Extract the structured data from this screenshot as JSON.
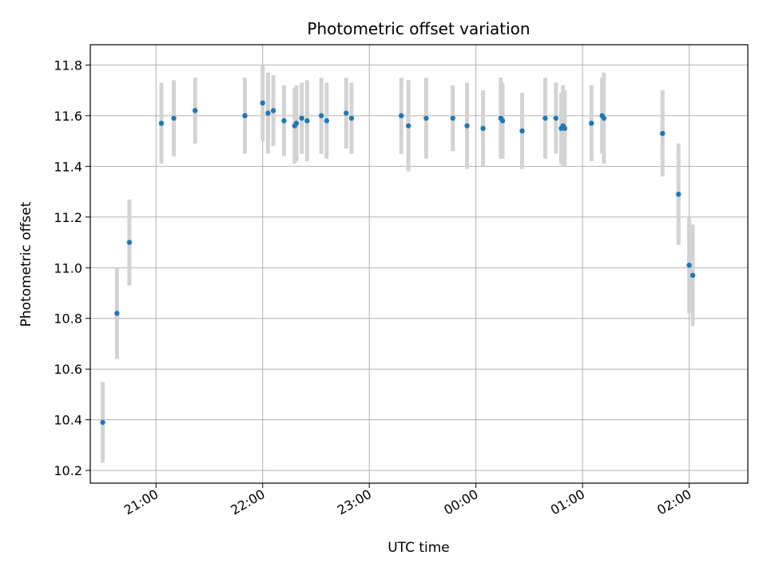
{
  "chart_data": {
    "type": "scatter",
    "title": "Photometric offset variation",
    "xlabel": "UTC time",
    "ylabel": "Photometric offset",
    "xlim": [
      "20:23",
      "02:33"
    ],
    "ylim": [
      10.15,
      11.88
    ],
    "x_ticks": [
      "21:00",
      "22:00",
      "23:00",
      "00:00",
      "01:00",
      "02:00"
    ],
    "y_ticks": [
      "10.2",
      "10.4",
      "10.6",
      "10.8",
      "11.0",
      "11.2",
      "11.4",
      "11.6",
      "11.8"
    ],
    "grid": true,
    "legend": "none",
    "colors": {
      "points": "#1f77b4",
      "errorbars": "#d3d3d3",
      "grid": "#b0b0b0"
    },
    "points": [
      {
        "t": "20:30",
        "y": 10.39,
        "err": 0.16
      },
      {
        "t": "20:38",
        "y": 10.82,
        "err": 0.18
      },
      {
        "t": "20:45",
        "y": 11.1,
        "err": 0.17
      },
      {
        "t": "21:03",
        "y": 11.57,
        "err": 0.16
      },
      {
        "t": "21:10",
        "y": 11.59,
        "err": 0.15
      },
      {
        "t": "21:22",
        "y": 11.62,
        "err": 0.13
      },
      {
        "t": "21:50",
        "y": 11.6,
        "err": 0.15
      },
      {
        "t": "22:00",
        "y": 11.65,
        "err": 0.15
      },
      {
        "t": "22:03",
        "y": 11.61,
        "err": 0.16
      },
      {
        "t": "22:06",
        "y": 11.62,
        "err": 0.14
      },
      {
        "t": "22:12",
        "y": 11.58,
        "err": 0.14
      },
      {
        "t": "22:18",
        "y": 11.56,
        "err": 0.15
      },
      {
        "t": "22:19",
        "y": 11.57,
        "err": 0.15
      },
      {
        "t": "22:22",
        "y": 11.59,
        "err": 0.14
      },
      {
        "t": "22:25",
        "y": 11.58,
        "err": 0.16
      },
      {
        "t": "22:33",
        "y": 11.6,
        "err": 0.15
      },
      {
        "t": "22:36",
        "y": 11.58,
        "err": 0.15
      },
      {
        "t": "22:47",
        "y": 11.61,
        "err": 0.14
      },
      {
        "t": "22:50",
        "y": 11.59,
        "err": 0.14
      },
      {
        "t": "23:18",
        "y": 11.6,
        "err": 0.15
      },
      {
        "t": "23:22",
        "y": 11.56,
        "err": 0.18
      },
      {
        "t": "23:32",
        "y": 11.59,
        "err": 0.16
      },
      {
        "t": "23:47",
        "y": 11.59,
        "err": 0.13
      },
      {
        "t": "23:55",
        "y": 11.56,
        "err": 0.17
      },
      {
        "t": "00:04",
        "y": 11.55,
        "err": 0.15
      },
      {
        "t": "00:14",
        "y": 11.59,
        "err": 0.16
      },
      {
        "t": "00:15",
        "y": 11.58,
        "err": 0.15
      },
      {
        "t": "00:26",
        "y": 11.54,
        "err": 0.15
      },
      {
        "t": "00:39",
        "y": 11.59,
        "err": 0.16
      },
      {
        "t": "00:45",
        "y": 11.59,
        "err": 0.14
      },
      {
        "t": "00:48",
        "y": 11.55,
        "err": 0.14
      },
      {
        "t": "00:49",
        "y": 11.56,
        "err": 0.16
      },
      {
        "t": "00:50",
        "y": 11.55,
        "err": 0.15
      },
      {
        "t": "01:05",
        "y": 11.57,
        "err": 0.15
      },
      {
        "t": "01:11",
        "y": 11.6,
        "err": 0.15
      },
      {
        "t": "01:12",
        "y": 11.59,
        "err": 0.18
      },
      {
        "t": "01:45",
        "y": 11.53,
        "err": 0.17
      },
      {
        "t": "01:54",
        "y": 11.29,
        "err": 0.2
      },
      {
        "t": "02:00",
        "y": 11.01,
        "err": 0.19
      },
      {
        "t": "02:02",
        "y": 10.97,
        "err": 0.2
      }
    ]
  }
}
